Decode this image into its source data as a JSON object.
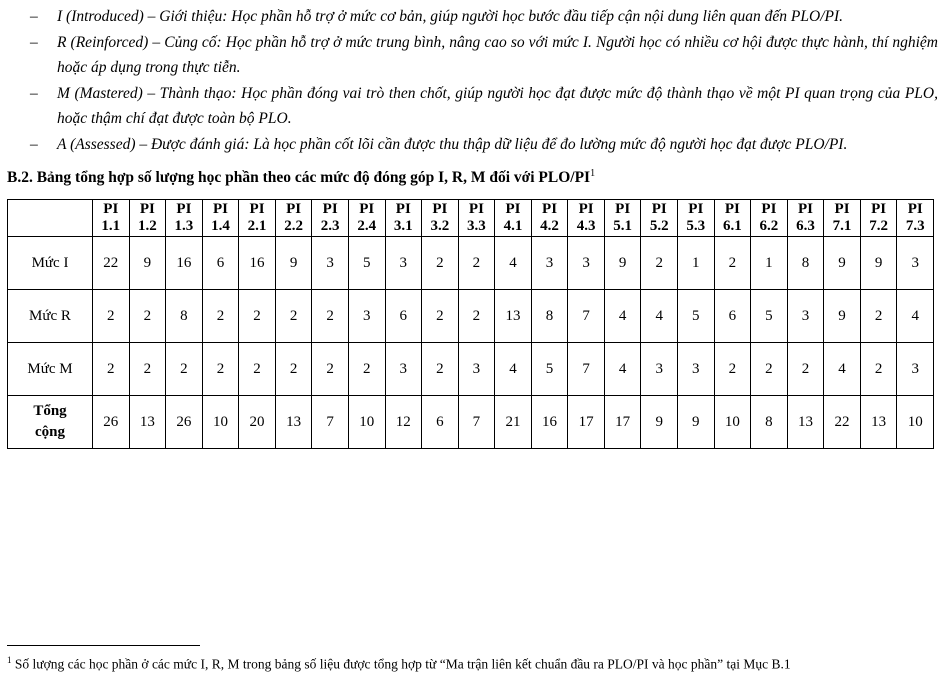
{
  "bullets": [
    {
      "dash": "–",
      "text": "I (Introduced) – Giới thiệu: Học phần hỗ trợ ở mức cơ bản, giúp người học bước đầu tiếp cận nội dung liên quan đến PLO/PI."
    },
    {
      "dash": "–",
      "text": "R (Reinforced) – Củng cố: Học phần hỗ trợ ở mức trung bình, nâng cao so với mức I. Người học có nhiều cơ hội được thực hành, thí nghiệm hoặc áp dụng trong thực tiễn."
    },
    {
      "dash": "–",
      "text": "M (Mastered) – Thành thạo: Học phần đóng vai trò then chốt, giúp người học đạt được mức độ thành thạo về một PI quan trọng của PLO, hoặc thậm chí đạt được toàn bộ PLO."
    },
    {
      "dash": "–",
      "text": "A (Assessed) – Được đánh giá: Là học phần cốt lõi cần được thu thập dữ liệu để đo lường mức độ người học đạt được PLO/PI."
    }
  ],
  "heading": {
    "text": "B.2. Bảng tổng hợp số lượng học phần theo các mức độ đóng góp I, R, M đối với PLO/PI",
    "footnote_ref": "1"
  },
  "table": {
    "columns": [
      "PI 1.1",
      "PI 1.2",
      "PI 1.3",
      "PI 1.4",
      "PI 2.1",
      "PI 2.2",
      "PI 2.3",
      "PI 2.4",
      "PI 3.1",
      "PI 3.2",
      "PI 3.3",
      "PI 4.1",
      "PI 4.2",
      "PI 4.3",
      "PI 5.1",
      "PI 5.2",
      "PI 5.3",
      "PI 6.1",
      "PI 6.2",
      "PI 6.3",
      "PI 7.1",
      "PI 7.2",
      "PI 7.3"
    ],
    "rows": [
      {
        "label": "Mức I",
        "bold": false,
        "values": [
          22,
          9,
          16,
          6,
          16,
          9,
          3,
          5,
          3,
          2,
          2,
          4,
          3,
          3,
          9,
          2,
          1,
          2,
          1,
          8,
          9,
          9,
          3
        ]
      },
      {
        "label": "Mức R",
        "bold": false,
        "values": [
          2,
          2,
          8,
          2,
          2,
          2,
          2,
          3,
          6,
          2,
          2,
          13,
          8,
          7,
          4,
          4,
          5,
          6,
          5,
          3,
          9,
          2,
          4
        ]
      },
      {
        "label": "Mức M",
        "bold": false,
        "values": [
          2,
          2,
          2,
          2,
          2,
          2,
          2,
          2,
          3,
          2,
          3,
          4,
          5,
          7,
          4,
          3,
          3,
          2,
          2,
          2,
          4,
          2,
          3
        ]
      },
      {
        "label": "Tổng cộng",
        "bold": true,
        "values": [
          26,
          13,
          26,
          10,
          20,
          13,
          7,
          10,
          12,
          6,
          7,
          21,
          16,
          17,
          17,
          9,
          9,
          10,
          8,
          13,
          22,
          13,
          10
        ]
      }
    ]
  },
  "footnote": {
    "ref": "1",
    "text": " Số lượng các học phần ở các mức I, R, M trong bảng số liệu được tổng hợp từ “Ma trận liên kết chuẩn đầu ra PLO/PI và học phần” tại Mục B.1"
  }
}
